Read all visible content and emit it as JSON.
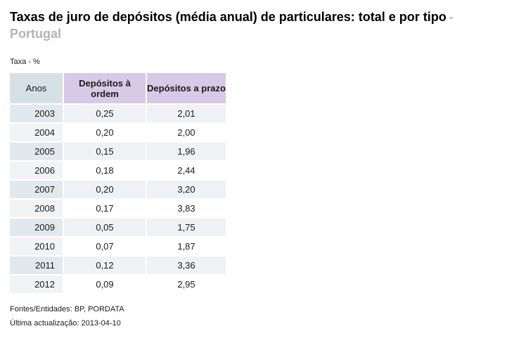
{
  "page": {
    "title_main": "Taxas de juro de depósitos (média anual) de particulares: total e por tipo",
    "title_region": "- Portugal",
    "unit_label": "Taxa - %"
  },
  "table": {
    "columns": [
      "Anos",
      "Depósitos à ordem",
      "Depósitos a prazo"
    ],
    "rows": [
      {
        "year": "2003",
        "ordem": "0,25",
        "prazo": "2,01"
      },
      {
        "year": "2004",
        "ordem": "0,20",
        "prazo": "2,00"
      },
      {
        "year": "2005",
        "ordem": "0,15",
        "prazo": "1,96"
      },
      {
        "year": "2006",
        "ordem": "0,18",
        "prazo": "2,44"
      },
      {
        "year": "2007",
        "ordem": "0,20",
        "prazo": "3,20"
      },
      {
        "year": "2008",
        "ordem": "0,17",
        "prazo": "3,83"
      },
      {
        "year": "2009",
        "ordem": "0,05",
        "prazo": "1,75"
      },
      {
        "year": "2010",
        "ordem": "0,07",
        "prazo": "1,87"
      },
      {
        "year": "2011",
        "ordem": "0,12",
        "prazo": "3,36"
      },
      {
        "year": "2012",
        "ordem": "0,09",
        "prazo": "2,95"
      }
    ]
  },
  "footer": {
    "sources": "Fontes/Entidades: BP, PORDATA",
    "updated": "Última actualização: 2013-04-10"
  },
  "colors": {
    "title_region_color": "#b3b3b3",
    "header_year_bg": "#d6e1e7",
    "header_deposit_bg": "#d8c9e6",
    "row_odd_year_bg": "#e2e9ee",
    "row_odd_value_bg": "#f0f1f5",
    "row_even_year_bg": "#f1f3f5",
    "row_even_value_bg": "#ffffff"
  },
  "chart_data": {
    "type": "table",
    "title": "Taxas de juro de depósitos (média anual) de particulares: total e por tipo - Portugal",
    "unit": "Taxa - %",
    "categories": [
      "2003",
      "2004",
      "2005",
      "2006",
      "2007",
      "2008",
      "2009",
      "2010",
      "2011",
      "2012"
    ],
    "series": [
      {
        "name": "Depósitos à ordem",
        "values": [
          0.25,
          0.2,
          0.15,
          0.18,
          0.2,
          0.17,
          0.05,
          0.07,
          0.12,
          0.09
        ]
      },
      {
        "name": "Depósitos a prazo",
        "values": [
          2.01,
          2.0,
          1.96,
          2.44,
          3.2,
          3.83,
          1.75,
          1.87,
          3.36,
          2.95
        ]
      }
    ]
  }
}
